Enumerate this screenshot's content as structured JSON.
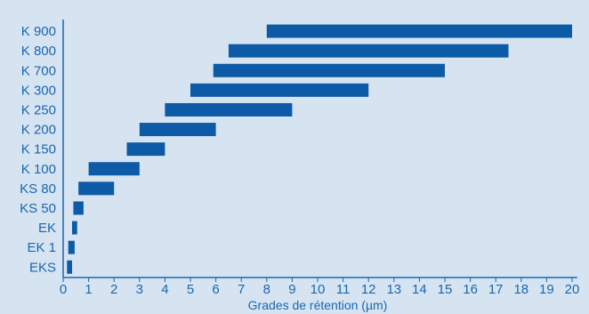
{
  "chart_data": {
    "type": "bar",
    "orientation": "horizontal-range",
    "categories": [
      "K 900",
      "K 800",
      "K 700",
      "K 300",
      "K 250",
      "K 200",
      "K 150",
      "K 100",
      "KS 80",
      "KS 50",
      "EK",
      "EK 1",
      "EKS"
    ],
    "ranges": [
      [
        8,
        20
      ],
      [
        6.5,
        17.5
      ],
      [
        5.9,
        15
      ],
      [
        5,
        12
      ],
      [
        4,
        9
      ],
      [
        3,
        6
      ],
      [
        2.5,
        4
      ],
      [
        1,
        3
      ],
      [
        0.6,
        2
      ],
      [
        0.4,
        0.8
      ],
      [
        0.35,
        0.55
      ],
      [
        0.2,
        0.45
      ],
      [
        0.15,
        0.35
      ]
    ],
    "x_ticks": [
      "0",
      "1",
      "2",
      "3",
      "4",
      "5",
      "6",
      "7",
      "8",
      "9",
      "10",
      "11",
      "12",
      "13",
      "14",
      "15",
      "16",
      "17",
      "18",
      "19",
      "20"
    ],
    "xlabel": "Grades de rétention (µm)",
    "xlim": [
      0,
      20.2
    ],
    "grid": false,
    "colors": {
      "bar": "#0d5aa7",
      "text": "#1a66b3",
      "background": "#d6e4f1",
      "axis": "#1a66b3"
    }
  }
}
